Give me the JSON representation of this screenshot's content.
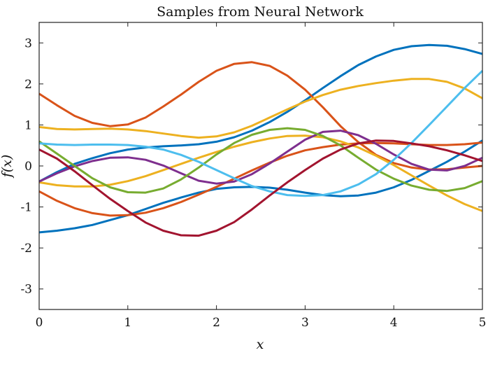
{
  "chart_data": {
    "type": "line",
    "title": "Samples from Neural Network",
    "xlabel": "x",
    "ylabel": "f(x)",
    "xlim": [
      0,
      5
    ],
    "ylim": [
      -3.5,
      3.5
    ],
    "xticks": [
      0,
      1,
      2,
      3,
      4,
      5
    ],
    "yticks": [
      -3,
      -2,
      -1,
      0,
      1,
      2,
      3
    ],
    "grid": false,
    "x": [
      0,
      0.2,
      0.4,
      0.6,
      0.8,
      1.0,
      1.2,
      1.4,
      1.6,
      1.8,
      2.0,
      2.2,
      2.4,
      2.6,
      2.8,
      3.0,
      3.2,
      3.4,
      3.6,
      3.8,
      4.0,
      4.2,
      4.4,
      4.6,
      4.8,
      5.0
    ],
    "series": [
      {
        "color": "#0072BD",
        "values": [
          -1.62,
          -1.58,
          -1.52,
          -1.44,
          -1.32,
          -1.2,
          -1.05,
          -0.9,
          -0.77,
          -0.65,
          -0.56,
          -0.52,
          -0.51,
          -0.53,
          -0.58,
          -0.65,
          -0.71,
          -0.74,
          -0.72,
          -0.65,
          -0.52,
          -0.34,
          -0.12,
          0.1,
          0.35,
          0.62
        ]
      },
      {
        "color": "#0072BD",
        "values": [
          -0.38,
          -0.15,
          0.05,
          0.19,
          0.31,
          0.4,
          0.45,
          0.48,
          0.5,
          0.53,
          0.59,
          0.7,
          0.86,
          1.07,
          1.32,
          1.6,
          1.9,
          2.19,
          2.46,
          2.67,
          2.83,
          2.92,
          2.95,
          2.93,
          2.85,
          2.73
        ]
      },
      {
        "color": "#D95319",
        "values": [
          1.76,
          1.48,
          1.22,
          1.05,
          0.97,
          1.01,
          1.18,
          1.45,
          1.74,
          2.05,
          2.32,
          2.49,
          2.53,
          2.44,
          2.2,
          1.86,
          1.43,
          0.97,
          0.58,
          0.27,
          0.07,
          -0.04,
          -0.09,
          -0.08,
          -0.04,
          0.0
        ]
      },
      {
        "color": "#D95319",
        "values": [
          -0.62,
          -0.85,
          -1.03,
          -1.15,
          -1.21,
          -1.2,
          -1.14,
          -1.03,
          -0.88,
          -0.7,
          -0.51,
          -0.31,
          -0.11,
          0.08,
          0.25,
          0.38,
          0.46,
          0.52,
          0.55,
          0.56,
          0.55,
          0.53,
          0.51,
          0.51,
          0.53,
          0.57
        ]
      },
      {
        "color": "#EDB120",
        "values": [
          0.95,
          0.9,
          0.89,
          0.9,
          0.91,
          0.89,
          0.85,
          0.79,
          0.73,
          0.69,
          0.72,
          0.82,
          0.98,
          1.18,
          1.38,
          1.57,
          1.73,
          1.86,
          1.95,
          2.02,
          2.08,
          2.12,
          2.12,
          2.05,
          1.89,
          1.65
        ]
      },
      {
        "color": "#EDB120",
        "values": [
          -0.4,
          -0.47,
          -0.5,
          -0.5,
          -0.46,
          -0.37,
          -0.25,
          -0.1,
          0.05,
          0.2,
          0.34,
          0.47,
          0.58,
          0.67,
          0.73,
          0.74,
          0.7,
          0.6,
          0.45,
          0.25,
          0.02,
          -0.23,
          -0.48,
          -0.72,
          -0.93,
          -1.1
        ]
      },
      {
        "color": "#7E2F8E",
        "values": [
          -0.38,
          -0.18,
          -0.01,
          0.12,
          0.2,
          0.21,
          0.15,
          0.01,
          -0.18,
          -0.36,
          -0.43,
          -0.38,
          -0.2,
          0.06,
          0.35,
          0.64,
          0.83,
          0.86,
          0.75,
          0.54,
          0.28,
          0.05,
          -0.09,
          -0.11,
          0.0,
          0.2
        ]
      },
      {
        "color": "#77AC30",
        "values": [
          0.6,
          0.3,
          0.0,
          -0.3,
          -0.52,
          -0.64,
          -0.65,
          -0.55,
          -0.33,
          -0.04,
          0.28,
          0.56,
          0.76,
          0.88,
          0.92,
          0.88,
          0.73,
          0.5,
          0.2,
          -0.09,
          -0.31,
          -0.48,
          -0.58,
          -0.61,
          -0.54,
          -0.37
        ]
      },
      {
        "color": "#4DBEEE",
        "values": [
          0.55,
          0.52,
          0.51,
          0.52,
          0.52,
          0.51,
          0.47,
          0.4,
          0.27,
          0.1,
          -0.1,
          -0.3,
          -0.49,
          -0.62,
          -0.71,
          -0.73,
          -0.71,
          -0.62,
          -0.45,
          -0.2,
          0.15,
          0.56,
          1.0,
          1.45,
          1.9,
          2.32
        ]
      },
      {
        "color": "#A2142F",
        "values": [
          0.4,
          0.18,
          -0.13,
          -0.47,
          -0.8,
          -1.1,
          -1.38,
          -1.58,
          -1.69,
          -1.7,
          -1.58,
          -1.37,
          -1.06,
          -0.72,
          -0.4,
          -0.1,
          0.18,
          0.4,
          0.55,
          0.62,
          0.61,
          0.55,
          0.48,
          0.38,
          0.26,
          0.12
        ]
      }
    ]
  }
}
